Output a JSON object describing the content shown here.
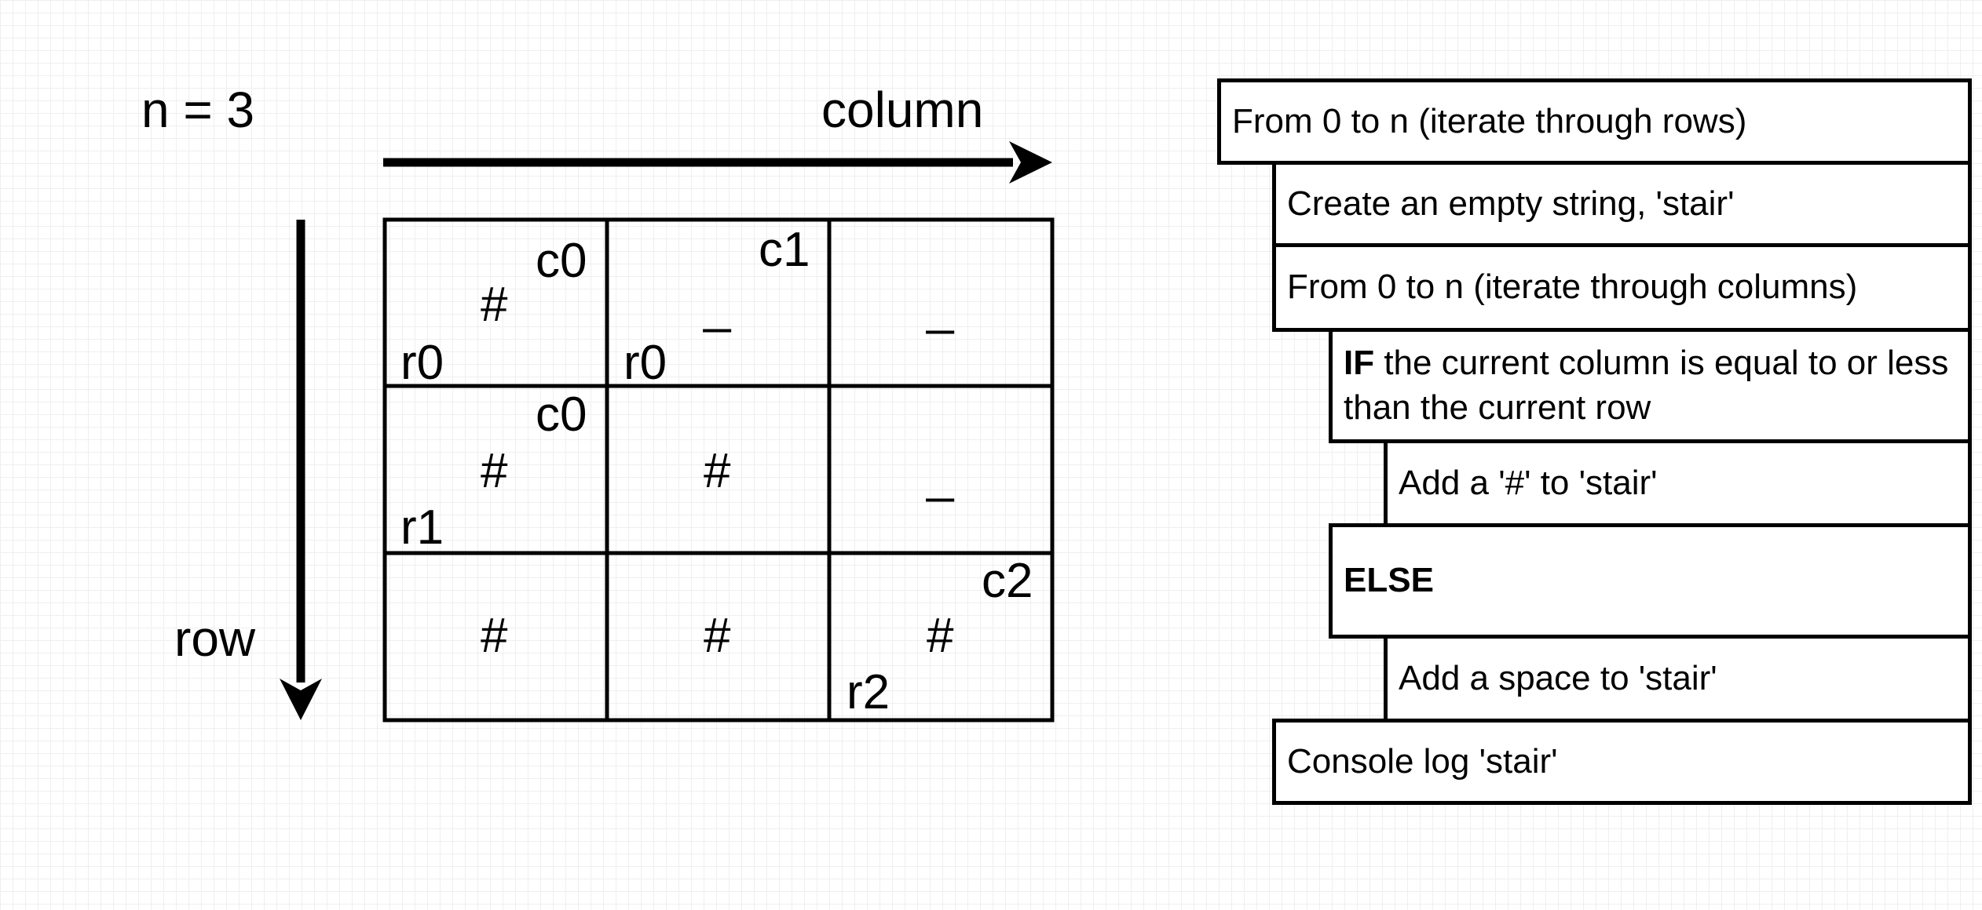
{
  "n_label": "n = 3",
  "column_label": "column",
  "row_label": "row",
  "grid": {
    "cells": [
      {
        "row": 0,
        "col": 0,
        "mark": "#",
        "col_tag": "c0",
        "row_tag": "r0"
      },
      {
        "row": 0,
        "col": 1,
        "mark": "_",
        "col_tag": "c1",
        "row_tag": "r0"
      },
      {
        "row": 0,
        "col": 2,
        "mark": "_",
        "col_tag": "",
        "row_tag": ""
      },
      {
        "row": 1,
        "col": 0,
        "mark": "#",
        "col_tag": "c0",
        "row_tag": "r1"
      },
      {
        "row": 1,
        "col": 1,
        "mark": "#",
        "col_tag": "",
        "row_tag": ""
      },
      {
        "row": 1,
        "col": 2,
        "mark": "_",
        "col_tag": "",
        "row_tag": ""
      },
      {
        "row": 2,
        "col": 0,
        "mark": "#",
        "col_tag": "",
        "row_tag": ""
      },
      {
        "row": 2,
        "col": 1,
        "mark": "#",
        "col_tag": "",
        "row_tag": ""
      },
      {
        "row": 2,
        "col": 2,
        "mark": "#",
        "col_tag": "c2",
        "row_tag": "r2"
      }
    ]
  },
  "pseudocode": {
    "step1": "From 0 to n (iterate through rows)",
    "step2": "Create an empty string, 'stair'",
    "step3": "From 0 to n (iterate through columns)",
    "step4_keyword": "IF",
    "step4_text": " the current column is equal to or less than the current row",
    "step5": "Add a '#' to 'stair'",
    "step6_keyword": "ELSE",
    "step7": "Add a space to 'stair'",
    "step8": "Console log 'stair'"
  }
}
